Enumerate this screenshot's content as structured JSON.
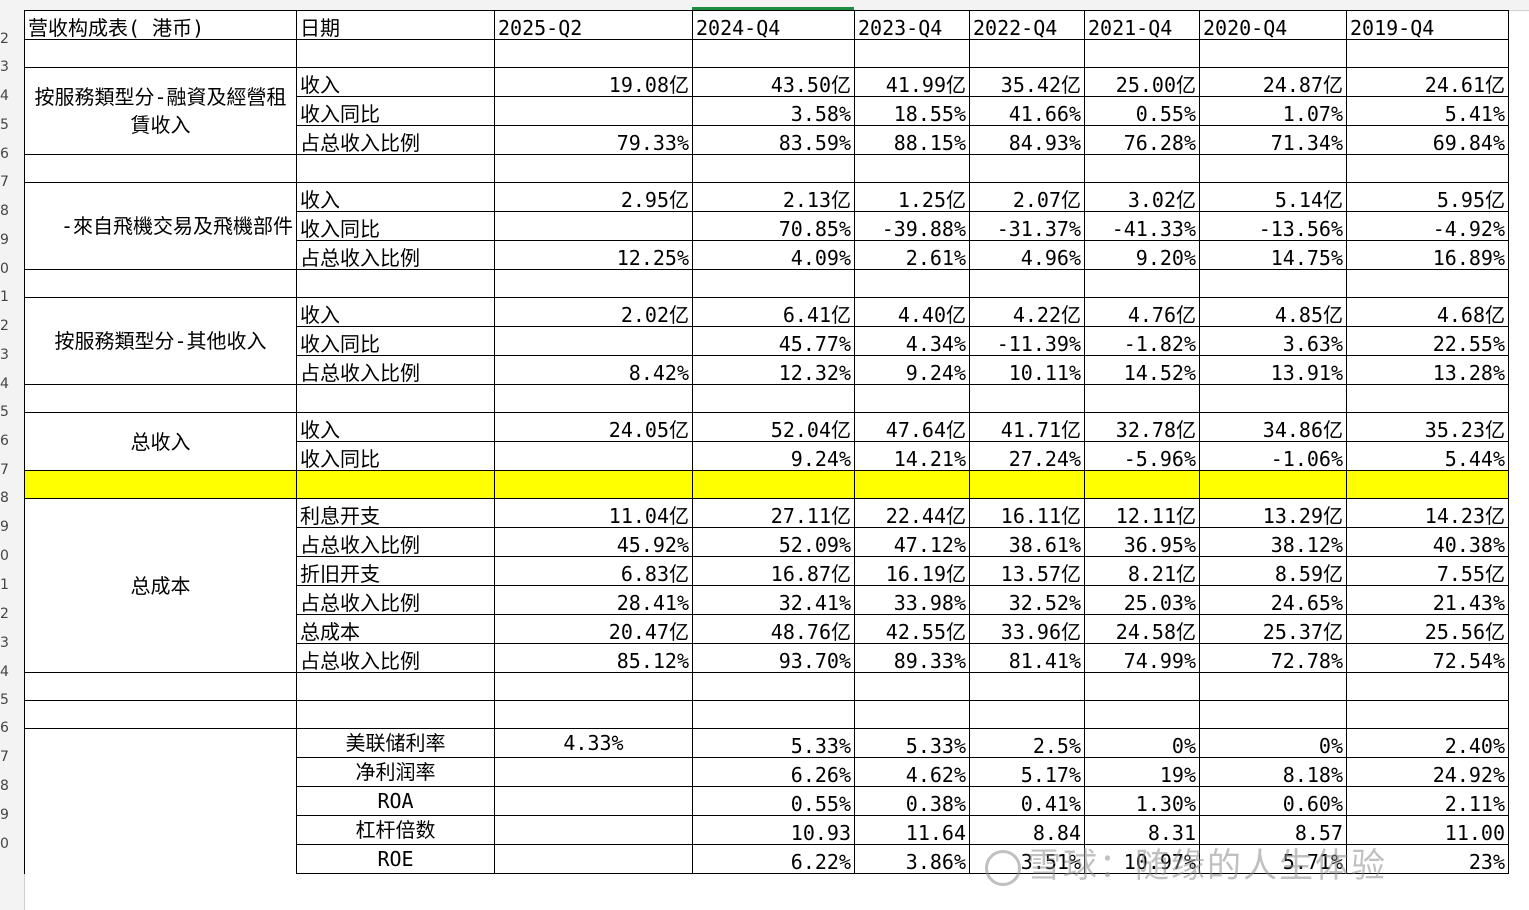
{
  "headers": [
    "营收构成表( 港币)",
    "日期",
    "2025-Q2",
    "2024-Q4",
    "2023-Q4",
    "2022-Q4",
    "2021-Q4",
    "2020-Q4",
    "2019-Q4"
  ],
  "row_numbers": [
    "2",
    "3",
    "4",
    "5",
    "6",
    "7",
    "8",
    "9",
    "0",
    "1",
    "2",
    "3",
    "4",
    "5",
    "6",
    "7",
    "8",
    "9",
    "0",
    "1",
    "2",
    "3",
    "4",
    "5",
    "6",
    "7",
    "8",
    "9",
    "0"
  ],
  "sections": {
    "leasing": {
      "title": "按服務類型分-融資及經營租賃收入",
      "rows": [
        {
          "label": "收入",
          "values": [
            "19.08亿",
            "43.50亿",
            "41.99亿",
            "35.42亿",
            "25.00亿",
            "24.87亿",
            "24.61亿"
          ]
        },
        {
          "label": "收入同比",
          "values": [
            "",
            "3.58%",
            "18.55%",
            "41.66%",
            "0.55%",
            "1.07%",
            "5.41%"
          ]
        },
        {
          "label": "占总收入比例",
          "values": [
            "79.33%",
            "83.59%",
            "88.15%",
            "84.93%",
            "76.28%",
            "71.34%",
            "69.84%"
          ]
        }
      ]
    },
    "aircraft": {
      "title": "-來自飛機交易及飛機部件",
      "rows": [
        {
          "label": "收入",
          "values": [
            "2.95亿",
            "2.13亿",
            "1.25亿",
            "2.07亿",
            "3.02亿",
            "5.14亿",
            "5.95亿"
          ]
        },
        {
          "label": "收入同比",
          "values": [
            "",
            "70.85%",
            "-39.88%",
            "-31.37%",
            "-41.33%",
            "-13.56%",
            "-4.92%"
          ]
        },
        {
          "label": "占总收入比例",
          "values": [
            "12.25%",
            "4.09%",
            "2.61%",
            "4.96%",
            "9.20%",
            "14.75%",
            "16.89%"
          ]
        }
      ]
    },
    "other": {
      "title": "按服務類型分-其他收入",
      "rows": [
        {
          "label": "收入",
          "values": [
            "2.02亿",
            "6.41亿",
            "4.40亿",
            "4.22亿",
            "4.76亿",
            "4.85亿",
            "4.68亿"
          ]
        },
        {
          "label": "收入同比",
          "values": [
            "",
            "45.77%",
            "4.34%",
            "-11.39%",
            "-1.82%",
            "3.63%",
            "22.55%"
          ]
        },
        {
          "label": "占总收入比例",
          "values": [
            "8.42%",
            "12.32%",
            "9.24%",
            "10.11%",
            "14.52%",
            "13.91%",
            "13.28%"
          ]
        }
      ]
    },
    "total_revenue": {
      "title": "总收入",
      "rows": [
        {
          "label": "收入",
          "values": [
            "24.05亿",
            "52.04亿",
            "47.64亿",
            "41.71亿",
            "32.78亿",
            "34.86亿",
            "35.23亿"
          ]
        },
        {
          "label": "收入同比",
          "values": [
            "",
            "9.24%",
            "14.21%",
            "27.24%",
            "-5.96%",
            "-1.06%",
            "5.44%"
          ]
        }
      ]
    },
    "total_cost": {
      "title": "总成本",
      "rows": [
        {
          "label": "利息开支",
          "values": [
            "11.04亿",
            "27.11亿",
            "22.44亿",
            "16.11亿",
            "12.11亿",
            "13.29亿",
            "14.23亿"
          ]
        },
        {
          "label": "占总收入比例",
          "values": [
            "45.92%",
            "52.09%",
            "47.12%",
            "38.61%",
            "36.95%",
            "38.12%",
            "40.38%"
          ]
        },
        {
          "label": "折旧开支",
          "values": [
            "6.83亿",
            "16.87亿",
            "16.19亿",
            "13.57亿",
            "8.21亿",
            "8.59亿",
            "7.55亿"
          ]
        },
        {
          "label": "占总收入比例",
          "values": [
            "28.41%",
            "32.41%",
            "33.98%",
            "32.52%",
            "25.03%",
            "24.65%",
            "21.43%"
          ]
        },
        {
          "label": "总成本",
          "values": [
            "20.47亿",
            "48.76亿",
            "42.55亿",
            "33.96亿",
            "24.58亿",
            "25.37亿",
            "25.56亿"
          ]
        },
        {
          "label": "占总收入比例",
          "values": [
            "85.12%",
            "93.70%",
            "89.33%",
            "81.41%",
            "74.99%",
            "72.78%",
            "72.54%"
          ]
        }
      ]
    },
    "ratios": {
      "rows": [
        {
          "label": "美联储利率",
          "values": [
            "4.33%",
            "5.33%",
            "5.33%",
            "2.5%",
            "0%",
            "0%",
            "2.40%"
          ],
          "first_center": true
        },
        {
          "label": "净利润率",
          "values": [
            "",
            "6.26%",
            "4.62%",
            "5.17%",
            "19%",
            "8.18%",
            "24.92%"
          ]
        },
        {
          "label": "ROA",
          "values": [
            "",
            "0.55%",
            "0.38%",
            "0.41%",
            "1.30%",
            "0.60%",
            "2.11%"
          ]
        },
        {
          "label": "杠杆倍数",
          "values": [
            "",
            "10.93",
            "11.64",
            "8.84",
            "8.31",
            "8.57",
            "11.00"
          ]
        },
        {
          "label": "ROE",
          "values": [
            "",
            "6.22%",
            "3.86%",
            "3.51%",
            "10.97%",
            "5.71%",
            "23%"
          ]
        }
      ]
    }
  },
  "watermark": "雪球：随缘的人生体验",
  "colors": {
    "highlight": "#ffff00",
    "selected_column": "#1e8e3e"
  }
}
